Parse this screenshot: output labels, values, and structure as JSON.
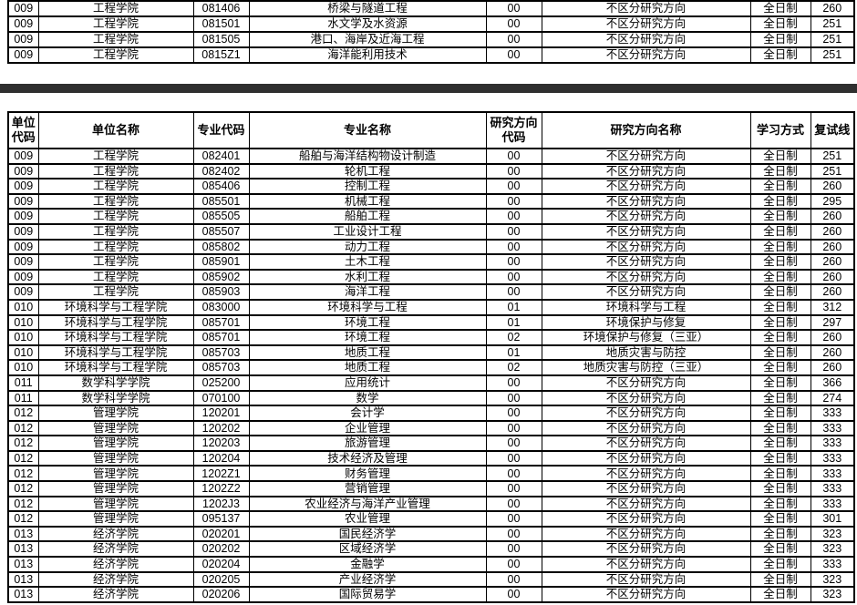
{
  "colors": {
    "background": "#ffffff",
    "divider_bar": "#2f2f2f",
    "table_border": "#000000",
    "text": "#000000"
  },
  "top_table": {
    "rows": [
      [
        "009",
        "工程学院",
        "081406",
        "桥梁与隧道工程",
        "00",
        "不区分研究方向",
        "全日制",
        "260"
      ],
      [
        "009",
        "工程学院",
        "081501",
        "水文学及水资源",
        "00",
        "不区分研究方向",
        "全日制",
        "251"
      ],
      [
        "009",
        "工程学院",
        "081505",
        "港口、海岸及近海工程",
        "00",
        "不区分研究方向",
        "全日制",
        "251"
      ],
      [
        "009",
        "工程学院",
        "0815Z1",
        "海洋能利用技术",
        "00",
        "不区分研究方向",
        "全日制",
        "251"
      ]
    ]
  },
  "main_table": {
    "headers": [
      "单位\n代码",
      "单位名称",
      "专业代码",
      "专业名称",
      "研究方向\n代码",
      "研究方向名称",
      "学习方式",
      "复试线"
    ],
    "rows": [
      [
        "009",
        "工程学院",
        "082401",
        "船舶与海洋结构物设计制造",
        "00",
        "不区分研究方向",
        "全日制",
        "251"
      ],
      [
        "009",
        "工程学院",
        "082402",
        "轮机工程",
        "00",
        "不区分研究方向",
        "全日制",
        "251"
      ],
      [
        "009",
        "工程学院",
        "085406",
        "控制工程",
        "00",
        "不区分研究方向",
        "全日制",
        "260"
      ],
      [
        "009",
        "工程学院",
        "085501",
        "机械工程",
        "00",
        "不区分研究方向",
        "全日制",
        "295"
      ],
      [
        "009",
        "工程学院",
        "085505",
        "船舶工程",
        "00",
        "不区分研究方向",
        "全日制",
        "260"
      ],
      [
        "009",
        "工程学院",
        "085507",
        "工业设计工程",
        "00",
        "不区分研究方向",
        "全日制",
        "260"
      ],
      [
        "009",
        "工程学院",
        "085802",
        "动力工程",
        "00",
        "不区分研究方向",
        "全日制",
        "260"
      ],
      [
        "009",
        "工程学院",
        "085901",
        "土木工程",
        "00",
        "不区分研究方向",
        "全日制",
        "260"
      ],
      [
        "009",
        "工程学院",
        "085902",
        "水利工程",
        "00",
        "不区分研究方向",
        "全日制",
        "260"
      ],
      [
        "009",
        "工程学院",
        "085903",
        "海洋工程",
        "00",
        "不区分研究方向",
        "全日制",
        "260"
      ],
      [
        "010",
        "环境科学与工程学院",
        "083000",
        "环境科学与工程",
        "01",
        "环境科学与工程",
        "全日制",
        "312"
      ],
      [
        "010",
        "环境科学与工程学院",
        "085701",
        "环境工程",
        "01",
        "环境保护与修复",
        "全日制",
        "297"
      ],
      [
        "010",
        "环境科学与工程学院",
        "085701",
        "环境工程",
        "02",
        "环境保护与修复（三亚）",
        "全日制",
        "260"
      ],
      [
        "010",
        "环境科学与工程学院",
        "085703",
        "地质工程",
        "01",
        "地质灾害与防控",
        "全日制",
        "260"
      ],
      [
        "010",
        "环境科学与工程学院",
        "085703",
        "地质工程",
        "02",
        "地质灾害与防控（三亚）",
        "全日制",
        "260"
      ],
      [
        "011",
        "数学科学学院",
        "025200",
        "应用统计",
        "00",
        "不区分研究方向",
        "全日制",
        "366"
      ],
      [
        "011",
        "数学科学学院",
        "070100",
        "数学",
        "00",
        "不区分研究方向",
        "全日制",
        "274"
      ],
      [
        "012",
        "管理学院",
        "120201",
        "会计学",
        "00",
        "不区分研究方向",
        "全日制",
        "333"
      ],
      [
        "012",
        "管理学院",
        "120202",
        "企业管理",
        "00",
        "不区分研究方向",
        "全日制",
        "333"
      ],
      [
        "012",
        "管理学院",
        "120203",
        "旅游管理",
        "00",
        "不区分研究方向",
        "全日制",
        "333"
      ],
      [
        "012",
        "管理学院",
        "120204",
        "技术经济及管理",
        "00",
        "不区分研究方向",
        "全日制",
        "333"
      ],
      [
        "012",
        "管理学院",
        "1202Z1",
        "财务管理",
        "00",
        "不区分研究方向",
        "全日制",
        "333"
      ],
      [
        "012",
        "管理学院",
        "1202Z2",
        "营销管理",
        "00",
        "不区分研究方向",
        "全日制",
        "333"
      ],
      [
        "012",
        "管理学院",
        "1202J3",
        "农业经济与海洋产业管理",
        "00",
        "不区分研究方向",
        "全日制",
        "333"
      ],
      [
        "012",
        "管理学院",
        "095137",
        "农业管理",
        "00",
        "不区分研究方向",
        "全日制",
        "301"
      ],
      [
        "013",
        "经济学院",
        "020201",
        "国民经济学",
        "00",
        "不区分研究方向",
        "全日制",
        "323"
      ],
      [
        "013",
        "经济学院",
        "020202",
        "区域经济学",
        "00",
        "不区分研究方向",
        "全日制",
        "323"
      ],
      [
        "013",
        "经济学院",
        "020204",
        "金融学",
        "00",
        "不区分研究方向",
        "全日制",
        "333"
      ],
      [
        "013",
        "经济学院",
        "020205",
        "产业经济学",
        "00",
        "不区分研究方向",
        "全日制",
        "323"
      ],
      [
        "013",
        "经济学院",
        "020206",
        "国际贸易学",
        "00",
        "不区分研究方向",
        "全日制",
        "323"
      ]
    ]
  }
}
